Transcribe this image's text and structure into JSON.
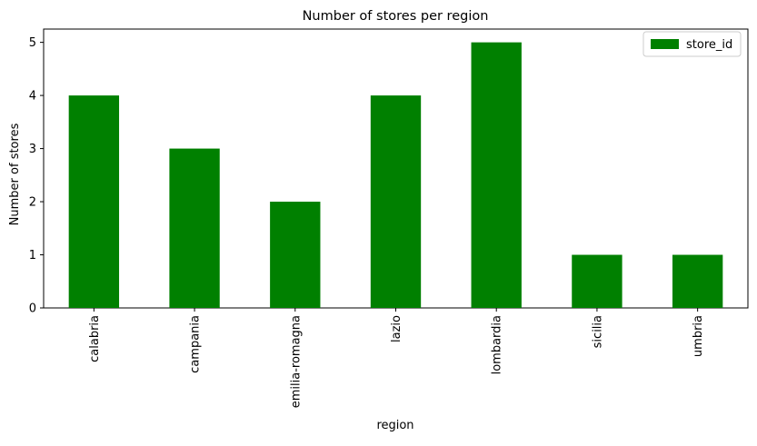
{
  "chart_data": {
    "type": "bar",
    "title": "Number of stores per region",
    "xlabel": "region",
    "ylabel": "Number of stores",
    "categories": [
      "calabria",
      "campania",
      "emilia-romagna",
      "lazio",
      "lombardia",
      "sicilia",
      "umbria"
    ],
    "series": [
      {
        "name": "store_id",
        "values": [
          4,
          3,
          2,
          4,
          5,
          1,
          1
        ],
        "color": "#008000"
      }
    ],
    "ylim": [
      0,
      5.25
    ],
    "yticks": [
      0,
      1,
      2,
      3,
      4,
      5
    ],
    "grid": false,
    "legend_position": "top-right"
  }
}
